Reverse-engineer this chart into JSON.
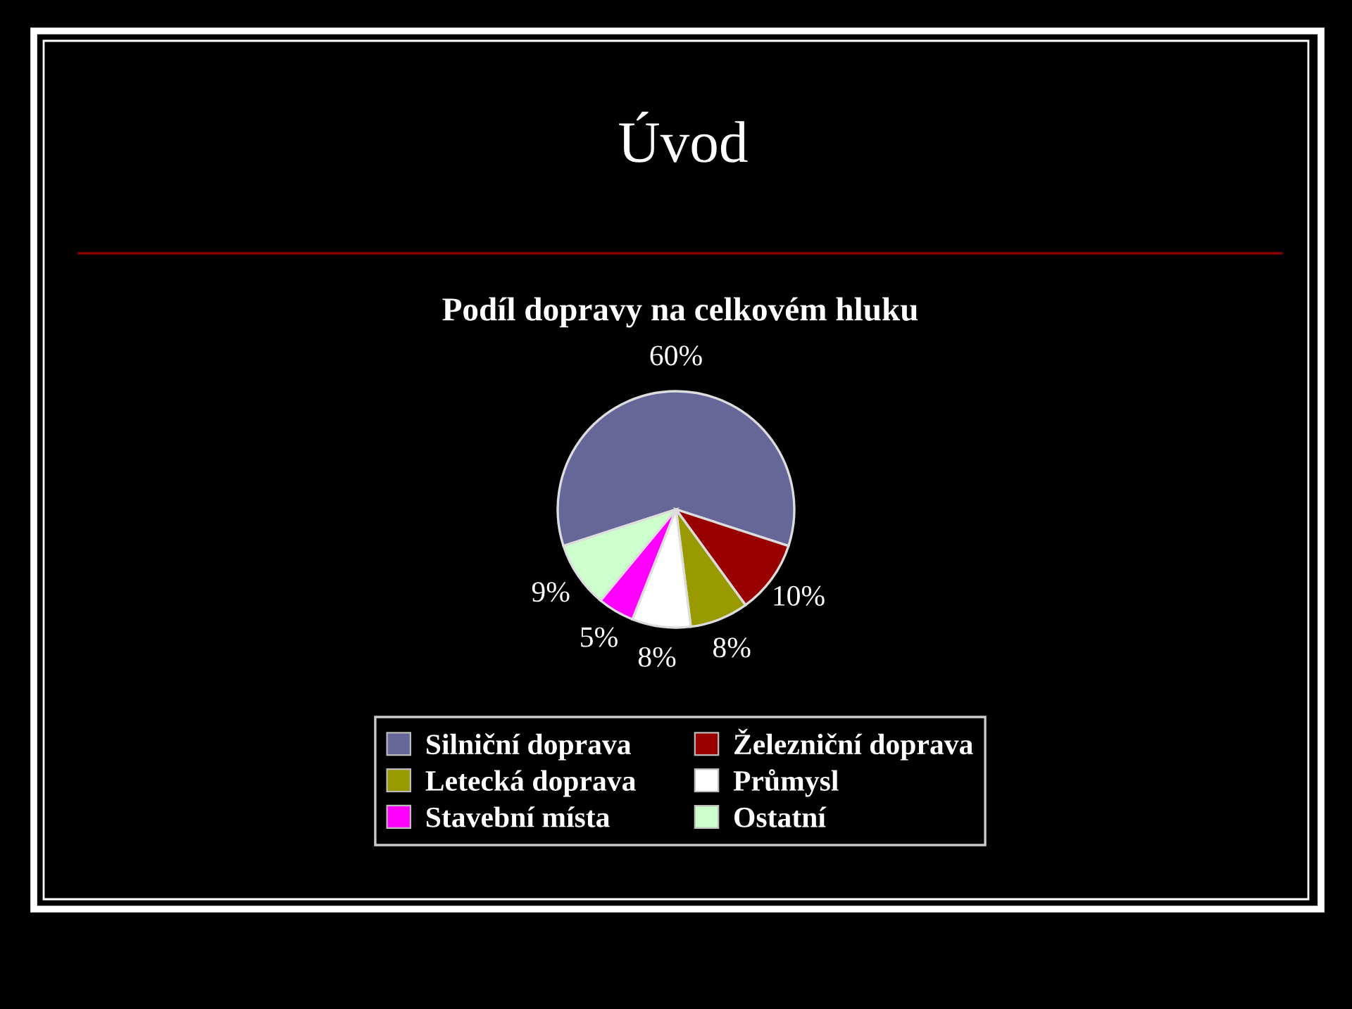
{
  "chart_data": {
    "type": "pie",
    "title": "Úvod",
    "subtitle": "Podíl dopravy na celkovém hluku",
    "categories": [
      "Silniční doprava",
      "Železniční doprava",
      "Letecká doprava",
      "Průmysl",
      "Stavební místa",
      "Ostatní"
    ],
    "values": [
      60,
      10,
      8,
      8,
      5,
      9
    ],
    "colors": [
      "#666699",
      "#990000",
      "#999900",
      "#ffffff",
      "#ff00ff",
      "#ccffcc"
    ],
    "value_labels": [
      "60%",
      "10%",
      "8%",
      "8%",
      "5%",
      "9%"
    ],
    "legend": "bottom"
  }
}
